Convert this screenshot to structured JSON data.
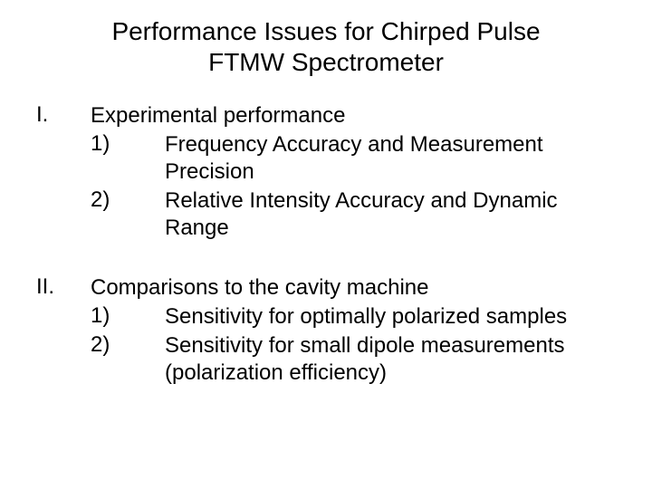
{
  "title_line1": "Performance Issues for Chirped Pulse",
  "title_line2": "FTMW Spectrometer",
  "sections": [
    {
      "roman": "I.",
      "heading": "Experimental performance",
      "items": [
        {
          "num": "1)",
          "text": "Frequency Accuracy and Measurement Precision"
        },
        {
          "num": "2)",
          "text": "Relative Intensity Accuracy and Dynamic Range"
        }
      ]
    },
    {
      "roman": "II.",
      "heading": "Comparisons to the cavity machine",
      "items": [
        {
          "num": "1)",
          "text": "Sensitivity for optimally polarized samples"
        },
        {
          "num": "2)",
          "text": "Sensitivity for small dipole measurements (polarization efficiency)"
        }
      ]
    }
  ],
  "styling": {
    "background_color": "#ffffff",
    "text_color": "#000000",
    "title_fontsize": 28,
    "body_fontsize": 24,
    "font_family": "Arial",
    "roman_col_width": 60,
    "subnum_indent": 60,
    "subnum_col_width": 70
  }
}
